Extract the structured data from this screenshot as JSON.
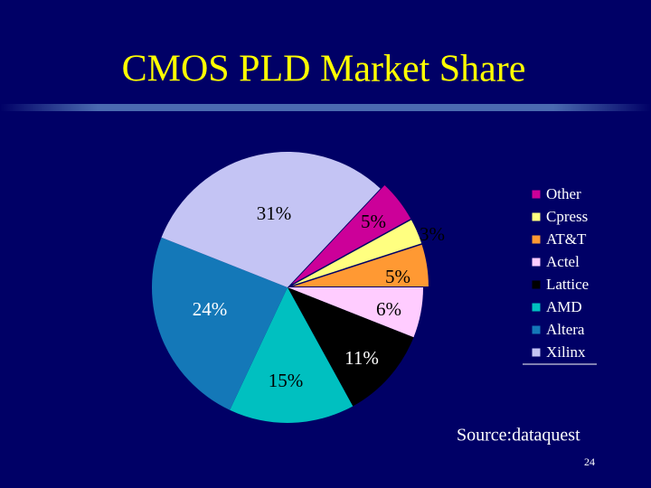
{
  "chart_data": {
    "type": "pie",
    "title": "CMOS PLD Market Share",
    "categories": [
      "Other",
      "Cpress",
      "AT&T",
      "Actel",
      "Lattice",
      "AMD",
      "Altera",
      "Xilinx"
    ],
    "values": [
      5,
      3,
      5,
      6,
      11,
      15,
      24,
      31
    ],
    "value_labels": [
      "5%",
      "3%",
      "5%",
      "6%",
      "11%",
      "15%",
      "24%",
      "31%"
    ],
    "colors": [
      "#cc0099",
      "#ffff80",
      "#ff9933",
      "#ffccff",
      "#000000",
      "#00c0c0",
      "#1478b8",
      "#c4c4f4"
    ],
    "legend": "right"
  },
  "footer": {
    "source": "Source:dataquest",
    "page": "24"
  }
}
